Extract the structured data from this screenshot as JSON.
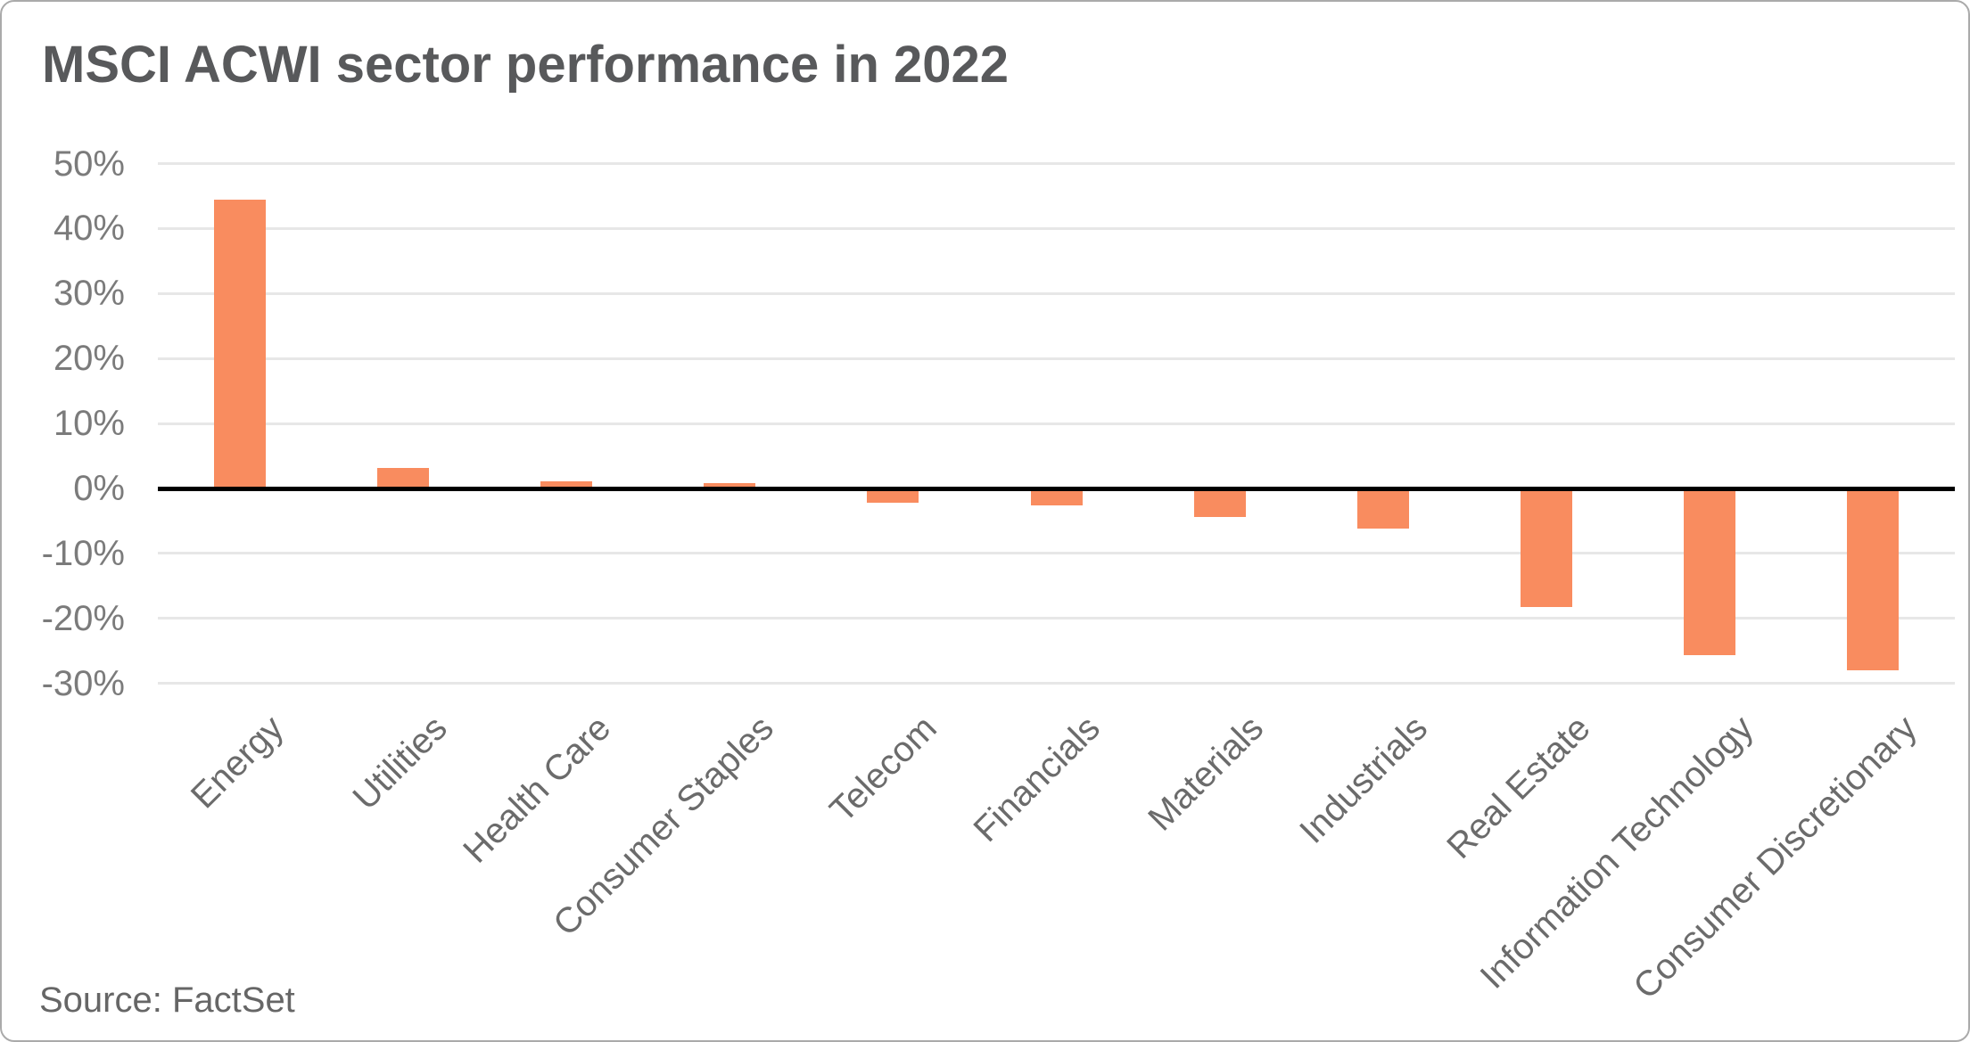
{
  "title": "MSCI ACWI sector performance in 2022",
  "source": "Source: FactSet",
  "colors": {
    "bar": "#f98c5f",
    "gridline": "#e7e7e7",
    "zero_axis": "#000000",
    "title_text": "#58595b",
    "ytick_text": "#7b7b7b",
    "xlabel_text": "#6b6b6b",
    "source_text": "#666666",
    "card_border": "#aaaaaa",
    "background": "#ffffff"
  },
  "chart_data": {
    "type": "bar",
    "title": "MSCI ACWI sector performance in 2022",
    "xlabel": "",
    "ylabel": "",
    "categories": [
      "Energy",
      "Utilities",
      "Health Care",
      "Consumer Staples",
      "Telecom",
      "Financials",
      "Materials",
      "Industrials",
      "Real Estate",
      "Information Technology",
      "Consumer Discretionary"
    ],
    "values": [
      44.5,
      3.2,
      1.1,
      0.8,
      -2.2,
      -2.6,
      -4.4,
      -6.2,
      -18.2,
      -25.7,
      -28.0
    ],
    "unit": "%",
    "ylim": [
      -30,
      50
    ],
    "ytick_values": [
      50,
      40,
      30,
      20,
      10,
      0,
      -10,
      -20,
      -30
    ],
    "ytick_labels": [
      "50%",
      "40%",
      "30%",
      "20%",
      "10%",
      "0%",
      "-10%",
      "-20%",
      "-30%"
    ],
    "grid": true,
    "legend": false,
    "x_label_rotation_deg": -45,
    "bar_color": "#f98c5f"
  }
}
